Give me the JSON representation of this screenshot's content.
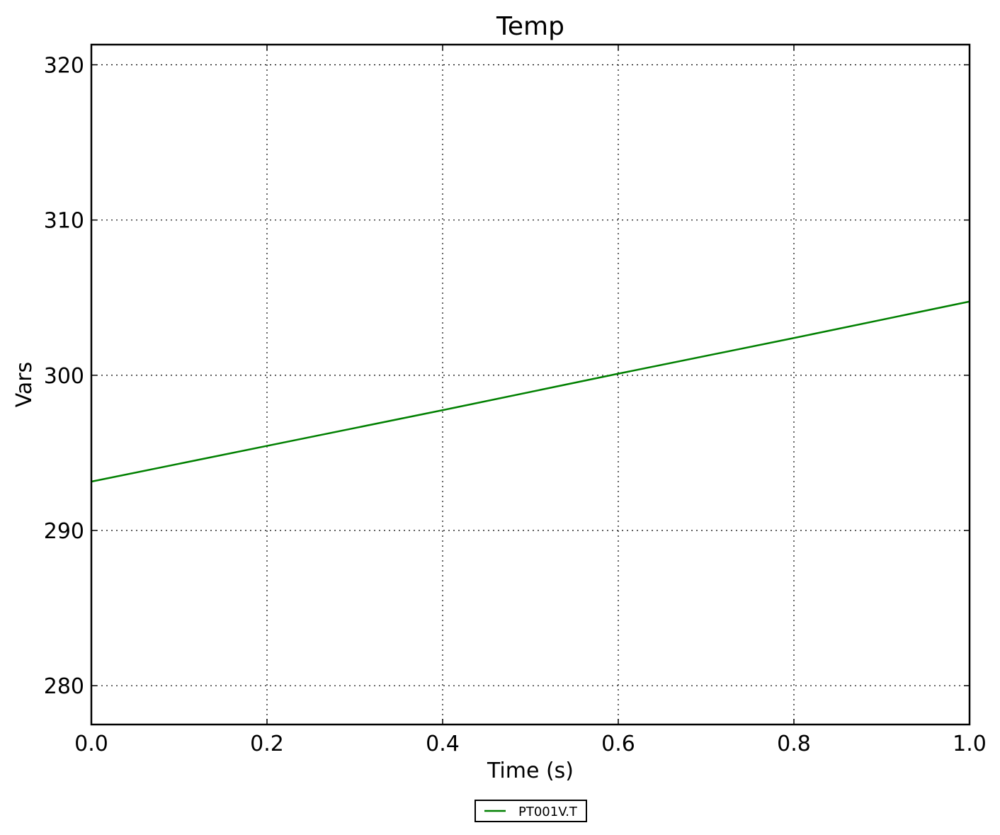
{
  "chart_data": {
    "type": "line",
    "title": "Temp",
    "xlabel": "Time (s)",
    "ylabel": "Vars",
    "xlim": [
      0.0,
      1.0
    ],
    "ylim": [
      277.5,
      321.3
    ],
    "xticks": [
      0.0,
      0.2,
      0.4,
      0.6,
      0.8,
      1.0
    ],
    "xtick_labels": [
      "0.0",
      "0.2",
      "0.4",
      "0.6",
      "0.8",
      "1.0"
    ],
    "yticks": [
      280,
      290,
      300,
      310,
      320
    ],
    "ytick_labels": [
      "280",
      "290",
      "300",
      "310",
      "320"
    ],
    "grid": true,
    "grid_style": "dotted",
    "legend_placement": "bottom-center, below axes",
    "series": [
      {
        "name": "PT001V.T",
        "color": "#008000",
        "x": [
          0.0,
          0.2,
          0.4,
          0.6,
          0.8,
          1.0
        ],
        "y": [
          293.15,
          295.45,
          297.75,
          300.1,
          302.4,
          304.75
        ]
      }
    ]
  }
}
